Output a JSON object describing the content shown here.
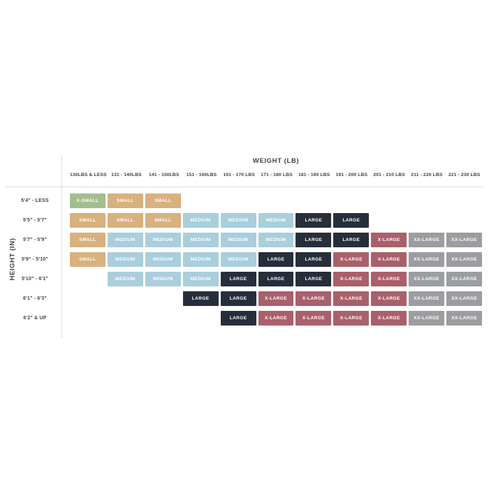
{
  "page": {
    "background_color": "#ffffff"
  },
  "chart_data": {
    "type": "heatmap",
    "title": "WEIGHT (LB)",
    "xlabel": "WEIGHT (LB)",
    "ylabel": "HEIGHT (IN)",
    "grid": "off",
    "columns": [
      "130LBS & LESS",
      "131 - 140LBS",
      "141 - 150LBS",
      "151 - 160LBS",
      "161 - 170 LBS",
      "171 - 180 LBS",
      "181 - 190 LBS",
      "191 - 200 LBS",
      "201 - 210 LBS",
      "211 - 220 LBS",
      "221 - 230 LBS"
    ],
    "rows": [
      {
        "label": "5'4\" - LESS",
        "cells": [
          "X-SMALL",
          "SMALL",
          "SMALL",
          null,
          null,
          null,
          null,
          null,
          null,
          null,
          null
        ]
      },
      {
        "label": "5'5\" - 5'7\"",
        "cells": [
          "SMALL",
          "SMALL",
          "SMALL",
          "MEDIUM",
          "MEDIUM",
          "MEDIUM",
          "LARGE",
          "LARGE",
          null,
          null,
          null
        ]
      },
      {
        "label": "5'7\" - 5'9\"",
        "cells": [
          "SMALL",
          "MEDIUM",
          "MEDIUM",
          "MEDIUM",
          "MEDIUM",
          "MEDIUM",
          "LARGE",
          "LARGE",
          "X-LARGE",
          "XX-LARGE",
          "XX-LARGE"
        ]
      },
      {
        "label": "5'9\" - 5'10\"",
        "cells": [
          "SMALL",
          "MEDIUM",
          "MEDIUM",
          "MEDIUM",
          "MEDIUM",
          "LARGE",
          "LARGE",
          "X-LARGE",
          "X-LARGE",
          "XX-LARGE",
          "XX-LARGE"
        ]
      },
      {
        "label": "5'10\" - 6'1\"",
        "cells": [
          null,
          "MEDIUM",
          "MEDIUM",
          "MEDIUM",
          "LARGE",
          "LARGE",
          "LARGE",
          "X-LARGE",
          "X-LARGE",
          "XX-LARGE",
          "XX-LARGE"
        ]
      },
      {
        "label": "6'1\" - 6'3\"",
        "cells": [
          null,
          null,
          null,
          "LARGE",
          "LARGE",
          "X-LARGE",
          "X-LARGE",
          "X-LARGE",
          "X-LARGE",
          "XX-LARGE",
          "XX-LARGE"
        ]
      },
      {
        "label": "6'2\" & UP",
        "cells": [
          null,
          null,
          null,
          null,
          "LARGE",
          "X-LARGE",
          "X-LARGE",
          "X-LARGE",
          "X-LARGE",
          "XX-LARGE",
          "XX-LARGE"
        ]
      }
    ],
    "size_colors": {
      "X-SMALL": "#a4bd8e",
      "SMALL": "#d8b17e",
      "MEDIUM": "#a9cedc",
      "LARGE": "#272e3b",
      "X-LARGE": "#a9606b",
      "XX-LARGE": "#9b9da0"
    },
    "cell_text_color": "#ffffff",
    "header_text_color": "#3c424e",
    "axis_line_color": "#bcbcbc"
  }
}
